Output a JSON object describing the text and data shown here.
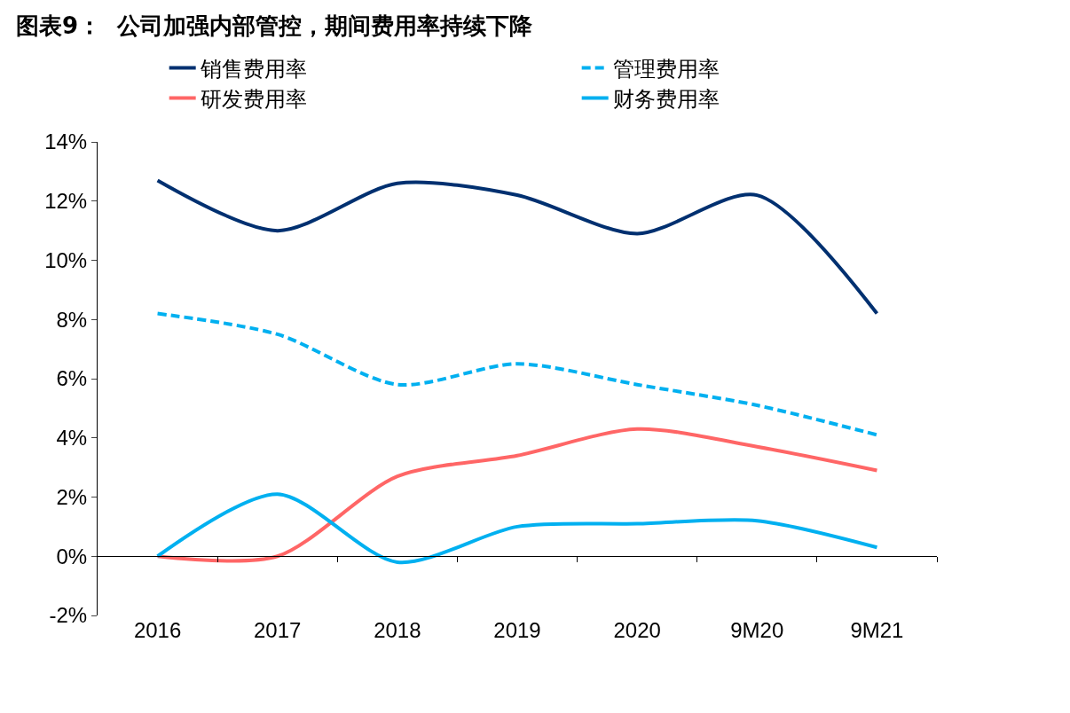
{
  "chart_data": {
    "type": "line",
    "title": "图表9：  公司加强内部管控，期间费用率持续下降",
    "categories": [
      "2016",
      "2017",
      "2018",
      "2019",
      "2020",
      "9M20",
      "9M21"
    ],
    "series": [
      {
        "name": "销售费用率",
        "color": "#003070",
        "line_style": "solid",
        "values": [
          12.7,
          11.0,
          12.6,
          12.2,
          10.9,
          12.2,
          8.2
        ]
      },
      {
        "name": "管理费用率",
        "color": "#00b0f0",
        "line_style": "dashed",
        "values": [
          8.2,
          7.5,
          5.8,
          6.5,
          5.8,
          5.1,
          4.1
        ]
      },
      {
        "name": "研发费用率",
        "color": "#ff6666",
        "line_style": "solid",
        "values": [
          0.0,
          0.0,
          2.7,
          3.4,
          4.3,
          3.7,
          2.9
        ]
      },
      {
        "name": "财务费用率",
        "color": "#00b0f0",
        "line_style": "solid",
        "values": [
          0.0,
          2.1,
          -0.2,
          1.0,
          1.1,
          1.2,
          0.3
        ]
      }
    ],
    "ylim": [
      -2,
      14
    ],
    "yticks": [
      {
        "value": -2,
        "label": "-2%"
      },
      {
        "value": 0,
        "label": "0%"
      },
      {
        "value": 2,
        "label": "2%"
      },
      {
        "value": 4,
        "label": "4%"
      },
      {
        "value": 6,
        "label": "6%"
      },
      {
        "value": 8,
        "label": "8%"
      },
      {
        "value": 10,
        "label": "10%"
      },
      {
        "value": 12,
        "label": "12%"
      },
      {
        "value": 14,
        "label": "14%"
      }
    ],
    "ref_lines": [
      {
        "axis": "y",
        "value": 0,
        "color": "#000000"
      }
    ],
    "grid": false,
    "legend": "top",
    "marker": "none"
  }
}
